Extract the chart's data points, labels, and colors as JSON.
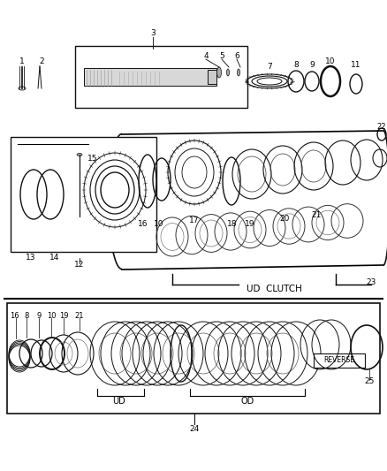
{
  "bg_color": "#ffffff",
  "fig_width": 4.38,
  "fig_height": 5.33,
  "numbers": {
    "top": [
      "1",
      "2",
      "3",
      "4",
      "5",
      "6",
      "7",
      "8",
      "9",
      "10",
      "11"
    ],
    "mid": [
      "10",
      "12",
      "13",
      "14",
      "15",
      "16",
      "17",
      "18",
      "19",
      "20",
      "21",
      "22",
      "23"
    ],
    "bot": [
      "8",
      "9",
      "10",
      "16",
      "19",
      "21",
      "24",
      "25"
    ]
  },
  "labels": {
    "ud_clutch": "UD  CLUTCH",
    "ud": "UD",
    "od": "OD",
    "reverse": "REVERSE"
  }
}
